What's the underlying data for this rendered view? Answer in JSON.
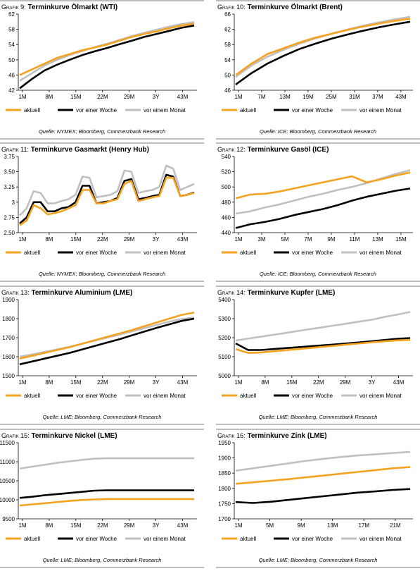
{
  "legend_labels": [
    "aktuell",
    "vor einer Woche",
    "vor einem Monat"
  ],
  "colors": {
    "aktuell": "#f4a21f",
    "vor_einer_woche": "#000000",
    "vor_einem_monat": "#c0c0c0"
  },
  "chart_data": [
    {
      "label": "Grafik 9:",
      "title": "Terminkurve Ölmarkt (WTI)",
      "type": "line",
      "xticks": [
        "1M",
        "8M",
        "15M",
        "22M",
        "29M",
        "3Y",
        "43M"
      ],
      "ylim": [
        42,
        62
      ],
      "yticks": [
        42,
        46,
        50,
        54,
        58,
        62
      ],
      "series": [
        {
          "name": "aktuell",
          "values": [
            46,
            47.5,
            49,
            50.5,
            51.5,
            52.5,
            53.2,
            54,
            55,
            56,
            56.8,
            57.5,
            58.3,
            59,
            59.5
          ]
        },
        {
          "name": "vor einer Woche",
          "values": [
            42.5,
            45,
            47.2,
            48.7,
            50,
            51.2,
            52.2,
            53.1,
            54.1,
            55,
            56,
            56.8,
            57.6,
            58.4,
            59
          ]
        },
        {
          "name": "vor einem Monat",
          "values": [
            44.5,
            46.5,
            48.5,
            50,
            51.2,
            52.3,
            53.3,
            54.2,
            55.2,
            56.2,
            57.1,
            57.9,
            58.7,
            59.4,
            59.9
          ]
        }
      ],
      "source": "Quelle: NYMEX; Bloomberg, Commerzbank Research"
    },
    {
      "label": "Grafik 10:",
      "title": "Terminkurve Ölmarkt (Brent)",
      "type": "line",
      "xticks": [
        "1M",
        "7M",
        "13M",
        "19M",
        "25M",
        "31M",
        "37M",
        "43M"
      ],
      "ylim": [
        46,
        66
      ],
      "yticks": [
        46,
        50,
        54,
        58,
        62,
        66
      ],
      "series": [
        {
          "name": "aktuell",
          "values": [
            50,
            53,
            55.5,
            57,
            58.5,
            59.8,
            60.8,
            61.8,
            62.7,
            63.5,
            64.2,
            64.8
          ]
        },
        {
          "name": "vor einer Woche",
          "values": [
            47.5,
            50.5,
            53,
            55,
            56.8,
            58.2,
            59.5,
            60.6,
            61.6,
            62.5,
            63.3,
            64
          ]
        },
        {
          "name": "vor einem Monat",
          "values": [
            49.5,
            52.5,
            54.8,
            56.6,
            58.2,
            59.6,
            60.8,
            61.9,
            62.9,
            63.8,
            64.6,
            65.3
          ]
        }
      ],
      "source": "Quelle: ICE; Bloomberg, Commerzbank Research"
    },
    {
      "label": "Grafik 11:",
      "title": "Terminkurve Gasmarkt (Henry Hub)",
      "type": "line",
      "xticks": [
        "1M",
        "8M",
        "15M",
        "22M",
        "29M",
        "3Y",
        "43M"
      ],
      "ylim": [
        2.5,
        3.75
      ],
      "yticks": [
        2.5,
        2.75,
        3,
        3.25,
        3.5,
        3.75
      ],
      "series": [
        {
          "name": "aktuell",
          "values": [
            2.62,
            2.7,
            2.95,
            2.9,
            2.8,
            2.82,
            2.85,
            2.9,
            2.95,
            3.2,
            3.2,
            2.98,
            2.98,
            3.02,
            3.05,
            3.3,
            3.35,
            3.02,
            3.05,
            3.08,
            3.1,
            3.4,
            3.4,
            3.1,
            3.12,
            3.15
          ]
        },
        {
          "name": "vor einer Woche",
          "values": [
            2.65,
            2.75,
            3,
            3,
            2.85,
            2.85,
            2.9,
            2.92,
            3,
            3.27,
            3.27,
            2.98,
            3,
            3.02,
            3.07,
            3.35,
            3.38,
            3.05,
            3.07,
            3.1,
            3.12,
            3.45,
            3.42,
            3.1,
            3.12,
            3.16
          ]
        },
        {
          "name": "vor einem Monat",
          "values": [
            2.78,
            2.9,
            3.18,
            3.15,
            2.98,
            2.98,
            3.02,
            3.05,
            3.12,
            3.42,
            3.4,
            3.08,
            3.1,
            3.12,
            3.18,
            3.52,
            3.5,
            3.15,
            3.18,
            3.2,
            3.25,
            3.6,
            3.55,
            3.2,
            3.25,
            3.3
          ]
        }
      ],
      "source": "Quelle: NYMEX; Bloomberg, Commerzbank Research"
    },
    {
      "label": "Grafik 12:",
      "title": "Terminkurve Gasöl (ICE)",
      "type": "line",
      "xticks": [
        "1M",
        "3M",
        "5M",
        "7M",
        "9M",
        "11M",
        "13M",
        "15M"
      ],
      "ylim": [
        440,
        540
      ],
      "yticks": [
        440,
        460,
        480,
        500,
        520,
        540
      ],
      "series": [
        {
          "name": "aktuell",
          "values": [
            485,
            490,
            491,
            494,
            498,
            502,
            506,
            510,
            514,
            506,
            510,
            515,
            519
          ]
        },
        {
          "name": "vor einer Woche",
          "values": [
            446,
            451,
            454,
            458,
            463,
            467,
            471,
            476,
            482,
            487,
            491,
            495,
            498
          ]
        },
        {
          "name": "vor einem Monat",
          "values": [
            465,
            468,
            473,
            477,
            482,
            487,
            491,
            496,
            500,
            505,
            511,
            517,
            522
          ]
        }
      ],
      "source": "Quelle: ICE; Bloomberg, Commerzbank Research"
    },
    {
      "label": "Grafik 13:",
      "title": "Terminkurve Aluminium (LME)",
      "type": "line",
      "xticks": [
        "1M",
        "8M",
        "15M",
        "22M",
        "29M",
        "3Y",
        "43M"
      ],
      "ylim": [
        1500,
        1900
      ],
      "yticks": [
        1500,
        1600,
        1700,
        1800,
        1900
      ],
      "series": [
        {
          "name": "aktuell",
          "values": [
            1590,
            1605,
            1620,
            1635,
            1650,
            1668,
            1686,
            1704,
            1722,
            1740,
            1760,
            1780,
            1800,
            1820,
            1832
          ]
        },
        {
          "name": "vor einer Woche",
          "values": [
            1560,
            1575,
            1590,
            1605,
            1620,
            1638,
            1656,
            1674,
            1692,
            1712,
            1732,
            1752,
            1770,
            1788,
            1800
          ]
        },
        {
          "name": "vor einem Monat",
          "values": [
            1600,
            1612,
            1625,
            1638,
            1652,
            1668,
            1684,
            1700,
            1716,
            1733,
            1750,
            1767,
            1784,
            1798,
            1806
          ]
        }
      ],
      "source": "Quelle: LME; Bloomberg, Commerzbank Research"
    },
    {
      "label": "Grafik 14:",
      "title": "Terminkurve Kupfer (LME)",
      "type": "line",
      "xticks": [
        "1M",
        "8M",
        "15M",
        "22M",
        "29M",
        "3Y",
        "43M"
      ],
      "ylim": [
        5000,
        5400
      ],
      "yticks": [
        5000,
        5100,
        5200,
        5300,
        5400
      ],
      "series": [
        {
          "name": "aktuell",
          "values": [
            5140,
            5120,
            5122,
            5128,
            5134,
            5140,
            5146,
            5152,
            5158,
            5164,
            5170,
            5176,
            5182,
            5186,
            5188
          ]
        },
        {
          "name": "vor einer Woche",
          "values": [
            5170,
            5135,
            5135,
            5140,
            5145,
            5150,
            5155,
            5160,
            5165,
            5170,
            5176,
            5182,
            5188,
            5194,
            5198
          ]
        },
        {
          "name": "vor einem Monat",
          "values": [
            5185,
            5195,
            5205,
            5215,
            5225,
            5235,
            5245,
            5255,
            5265,
            5275,
            5285,
            5295,
            5310,
            5322,
            5335
          ]
        }
      ],
      "source": "Quelle: LME; Bloomberg, Commerzbank Research"
    },
    {
      "label": "Grafik 15:",
      "title": "Terminkurve Nickel (LME)",
      "type": "line",
      "xticks": [
        "1M",
        "8M",
        "15M",
        "22M",
        "29M",
        "3Y",
        "43M"
      ],
      "ylim": [
        9500,
        11500
      ],
      "yticks": [
        9500,
        10000,
        10500,
        11000,
        11500
      ],
      "series": [
        {
          "name": "aktuell",
          "values": [
            9850,
            9880,
            9910,
            9940,
            9970,
            9995,
            10010,
            10020,
            10020,
            10020,
            10020,
            10020,
            10020,
            10020,
            10020
          ]
        },
        {
          "name": "vor einer Woche",
          "values": [
            10050,
            10080,
            10120,
            10150,
            10180,
            10210,
            10240,
            10250,
            10250,
            10250,
            10250,
            10250,
            10250,
            10250,
            10250
          ]
        },
        {
          "name": "vor einem Monat",
          "values": [
            10820,
            10870,
            10920,
            10970,
            11010,
            11050,
            11080,
            11090,
            11090,
            11090,
            11090,
            11090,
            11090,
            11090,
            11090
          ]
        }
      ],
      "source": "Quelle: LME; Bloomberg, Commerzbank Research"
    },
    {
      "label": "Grafik 16:",
      "title": "Terminkurve Zink (LME)",
      "type": "line",
      "xticks": [
        "1M",
        "5M",
        "9M",
        "13M",
        "17M",
        "21M"
      ],
      "ylim": [
        1700,
        1950
      ],
      "yticks": [
        1700,
        1750,
        1800,
        1850,
        1900,
        1950
      ],
      "series": [
        {
          "name": "aktuell",
          "values": [
            1815,
            1820,
            1825,
            1830,
            1836,
            1842,
            1848,
            1854,
            1860,
            1866,
            1870
          ]
        },
        {
          "name": "vor einer Woche",
          "values": [
            1755,
            1752,
            1756,
            1762,
            1768,
            1774,
            1780,
            1786,
            1790,
            1795,
            1798
          ]
        },
        {
          "name": "vor einem Monat",
          "values": [
            1858,
            1866,
            1874,
            1882,
            1890,
            1897,
            1903,
            1908,
            1912,
            1916,
            1920
          ]
        }
      ],
      "source": "Quelle: LME; Bloomberg, Commerzbank Research"
    }
  ]
}
